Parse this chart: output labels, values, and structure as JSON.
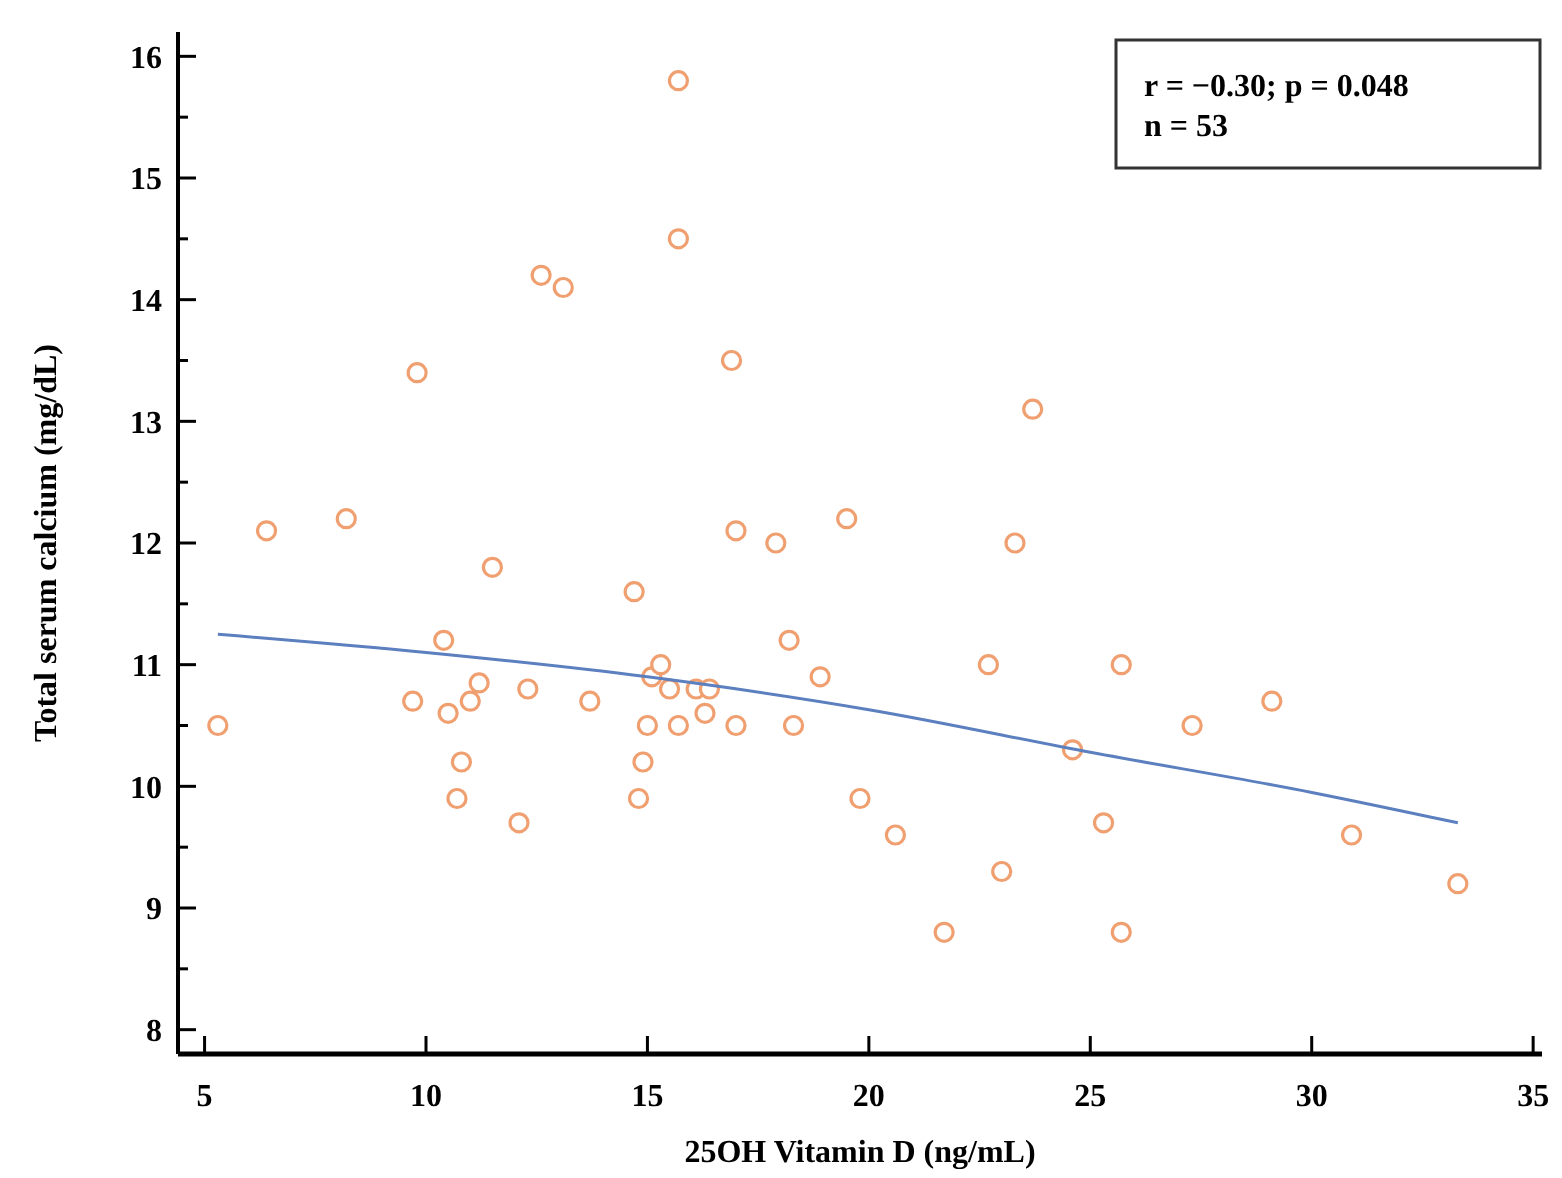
{
  "chart_data": {
    "type": "scatter",
    "xlabel": "25OH Vitamin D (ng/mL)",
    "ylabel": "Total serum calcium (mg/dL)",
    "annotations": [
      "r = −0.30; p = 0.048",
      "n = 53"
    ],
    "xlim": [
      4.4,
      35.2
    ],
    "xticks": [
      5,
      10,
      15,
      20,
      25,
      30,
      35
    ],
    "ylim": [
      7.8,
      16.2
    ],
    "yticks": [
      8,
      {
        "value": 8.5,
        "label": null
      },
      9,
      {
        "value": 9.5,
        "label": null
      },
      10,
      {
        "value": 10.5,
        "label": null
      },
      11,
      {
        "value": 11.5,
        "label": null
      },
      12,
      {
        "value": 12.5,
        "label": null
      },
      13,
      {
        "value": 13.5,
        "label": null
      },
      14,
      {
        "value": 14.5,
        "label": null
      },
      15,
      {
        "value": 15.5,
        "label": null
      },
      16
    ],
    "grid": false,
    "series": [
      {
        "marker": "circle",
        "color": "#f0a070",
        "x": [
          5.3,
          6.4,
          8.2,
          9.8,
          9.7,
          10.4,
          10.5,
          10.7,
          10.8,
          11.0,
          11.2,
          11.5,
          12.1,
          12.3,
          12.6,
          13.1,
          13.7,
          14.7,
          14.9,
          14.8,
          15.0,
          15.1,
          15.3,
          15.5,
          15.7,
          15.7,
          15.7,
          16.1,
          16.3,
          16.4,
          16.9,
          17.0,
          17.0,
          17.9,
          18.2,
          18.3,
          18.9,
          19.5,
          19.8,
          20.6,
          21.7,
          22.7,
          23.0,
          23.3,
          23.7,
          24.6,
          25.3,
          25.7,
          25.7,
          27.3,
          29.1,
          30.9,
          33.3
        ],
        "values": [
          10.5,
          12.1,
          12.2,
          13.4,
          10.7,
          11.2,
          10.6,
          9.9,
          10.2,
          10.7,
          10.85,
          11.8,
          9.7,
          10.8,
          14.2,
          14.1,
          10.7,
          11.6,
          10.2,
          9.9,
          10.5,
          10.9,
          11.0,
          10.8,
          10.5,
          15.8,
          14.5,
          10.8,
          10.6,
          10.8,
          13.5,
          10.5,
          12.1,
          12.0,
          11.2,
          10.5,
          10.9,
          12.2,
          9.9,
          9.6,
          8.8,
          11.0,
          9.3,
          12.0,
          13.1,
          10.3,
          9.7,
          11.0,
          8.8,
          10.5,
          10.7,
          9.6,
          9.2
        ]
      },
      {
        "type": "line",
        "marker": "none",
        "line_style": "solid",
        "color": "#5b7fbf",
        "x": [
          5.3,
          10,
          15,
          20,
          25,
          30,
          33.3
        ],
        "values": [
          11.25,
          11.1,
          10.9,
          10.63,
          10.28,
          9.95,
          9.7
        ]
      }
    ]
  }
}
